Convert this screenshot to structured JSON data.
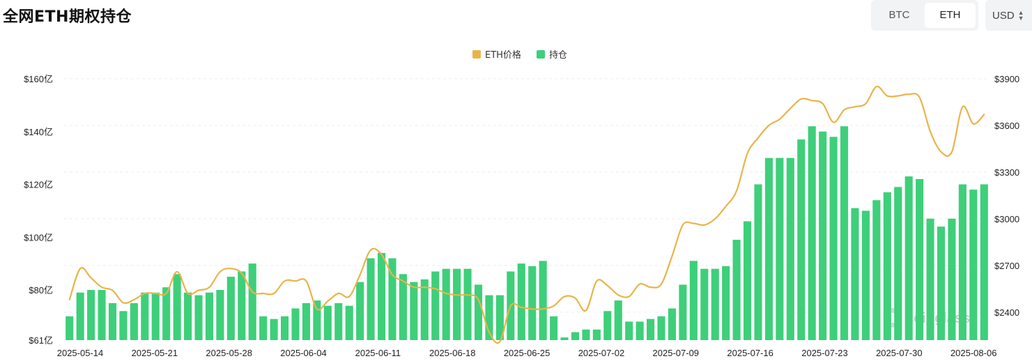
{
  "header": {
    "title": "全网ETH期权持仓"
  },
  "coin_toggle": {
    "options": [
      "BTC",
      "ETH"
    ],
    "selected": "ETH"
  },
  "currency": {
    "value": "USD"
  },
  "watermark": {
    "text": "coinglass"
  },
  "colors": {
    "price_line": "#e8b44a",
    "oi_bar": "#3ecf7a",
    "grid": "#ececec",
    "text": "#222222"
  },
  "chart_data": {
    "type": "bar",
    "grid": true,
    "legend_position": "top-center",
    "legend": [
      {
        "name": "ETH价格",
        "color": "#e8b44a"
      },
      {
        "name": "持仓",
        "color": "#3ecf7a"
      }
    ],
    "x_tick_labels": [
      "2025-05-14",
      "2025-05-21",
      "2025-05-28",
      "2025-06-04",
      "2025-06-11",
      "2025-06-18",
      "2025-06-25",
      "2025-07-02",
      "2025-07-09",
      "2025-07-16",
      "2025-07-23",
      "2025-07-30",
      "2025-08-06"
    ],
    "x_range": [
      "2025-05-13",
      "2025-08-07"
    ],
    "y_left": {
      "min": 61,
      "max": 160,
      "ticks": [
        61,
        80,
        100,
        120,
        140,
        160
      ],
      "tick_labels": [
        "$61亿",
        "$80亿",
        "$100亿",
        "$120亿",
        "$140亿",
        "$160亿"
      ]
    },
    "y_right": {
      "min": 2220,
      "max": 3900,
      "ticks": [
        2400,
        2700,
        3000,
        3300,
        3600,
        3900
      ],
      "tick_labels": [
        "$2400",
        "$2700",
        "$3000",
        "$3300",
        "$3600",
        "$3900"
      ]
    },
    "series": [
      {
        "name": "持仓",
        "kind": "bar",
        "axis": "left",
        "values": [
          70,
          79,
          80,
          80,
          75,
          72,
          75,
          79,
          79,
          81,
          86,
          79,
          78,
          79,
          80,
          85,
          87,
          90,
          70,
          69,
          70,
          73,
          75,
          76,
          74,
          75,
          74,
          83,
          92,
          94,
          92,
          86,
          83,
          84,
          87,
          88,
          88,
          88,
          82,
          78,
          78,
          87,
          90,
          89,
          91,
          70,
          62,
          64,
          65,
          65,
          72,
          76,
          68,
          68,
          69,
          70,
          73,
          82,
          91,
          88,
          88,
          89,
          99,
          106,
          120,
          130,
          130,
          130,
          137,
          142,
          140,
          138,
          142,
          111,
          110,
          114,
          117,
          119,
          123,
          122,
          107,
          104,
          107,
          120,
          118,
          120
        ]
      },
      {
        "name": "ETH价格",
        "kind": "line",
        "axis": "right",
        "values": [
          2480,
          2680,
          2620,
          2560,
          2540,
          2460,
          2480,
          2520,
          2520,
          2520,
          2660,
          2520,
          2540,
          2560,
          2660,
          2680,
          2650,
          2530,
          2520,
          2520,
          2600,
          2600,
          2600,
          2420,
          2470,
          2520,
          2500,
          2640,
          2800,
          2770,
          2640,
          2600,
          2560,
          2560,
          2550,
          2520,
          2510,
          2510,
          2480,
          2270,
          2210,
          2440,
          2430,
          2420,
          2420,
          2440,
          2500,
          2490,
          2410,
          2600,
          2570,
          2510,
          2500,
          2580,
          2560,
          2580,
          2760,
          2960,
          2970,
          2960,
          3000,
          3080,
          3180,
          3420,
          3520,
          3600,
          3640,
          3710,
          3770,
          3760,
          3740,
          3620,
          3700,
          3720,
          3740,
          3850,
          3790,
          3790,
          3800,
          3780,
          3560,
          3430,
          3430,
          3720,
          3610,
          3670
        ]
      }
    ]
  }
}
